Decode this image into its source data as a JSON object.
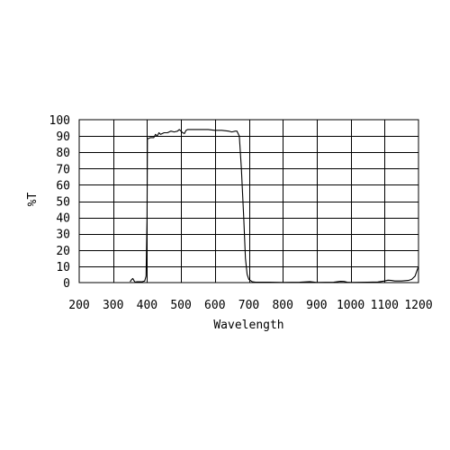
{
  "chart_data": {
    "type": "line",
    "title": "",
    "xlabel": "Wavelength",
    "ylabel": "%T",
    "xlim": [
      200,
      1200
    ],
    "ylim": [
      0,
      100
    ],
    "x_ticks": [
      200,
      300,
      400,
      500,
      600,
      700,
      800,
      900,
      1000,
      1100,
      1200
    ],
    "y_ticks": [
      0,
      10,
      20,
      30,
      40,
      50,
      60,
      70,
      80,
      90,
      100
    ],
    "grid": true,
    "line_color": "#000000",
    "series": [
      {
        "x": [
          350,
          355,
          358,
          362,
          365,
          370,
          385,
          393,
          397,
          400,
          401,
          403,
          405,
          410,
          420,
          425,
          430,
          435,
          440,
          450,
          460,
          470,
          480,
          490,
          495,
          500,
          505,
          510,
          515,
          520,
          530,
          540,
          560,
          580,
          600,
          620,
          640,
          650,
          660,
          665,
          672,
          678,
          685,
          690,
          695,
          700,
          710,
          720,
          740,
          760,
          800,
          850,
          880,
          900,
          950,
          970,
          980,
          990,
          1000,
          1050,
          1080,
          1100,
          1110,
          1120,
          1130,
          1150,
          1170,
          1180,
          1190,
          1195,
          1200
        ],
        "y": [
          0.5,
          2.0,
          2.5,
          1.0,
          0.3,
          0.5,
          0.5,
          1.0,
          4.0,
          40,
          88.0,
          88.5,
          88.5,
          89.0,
          89.0,
          91.0,
          90.0,
          92.0,
          91.0,
          92.0,
          92.0,
          93.0,
          92.5,
          93.0,
          94.0,
          93.0,
          92.0,
          91.5,
          93.5,
          94.0,
          94.0,
          94.0,
          94.0,
          94.0,
          93.5,
          93.5,
          93.0,
          92.5,
          93.0,
          93.0,
          90.0,
          70.0,
          40.0,
          15.0,
          5.0,
          2.0,
          0.5,
          0.3,
          0.2,
          0.2,
          0.1,
          0.2,
          0.6,
          0.1,
          0.3,
          0.8,
          0.7,
          0.3,
          0.1,
          0.2,
          0.4,
          1.0,
          1.5,
          1.3,
          1.0,
          1.0,
          1.3,
          2.0,
          4.0,
          7.0,
          10.0
        ]
      }
    ]
  }
}
